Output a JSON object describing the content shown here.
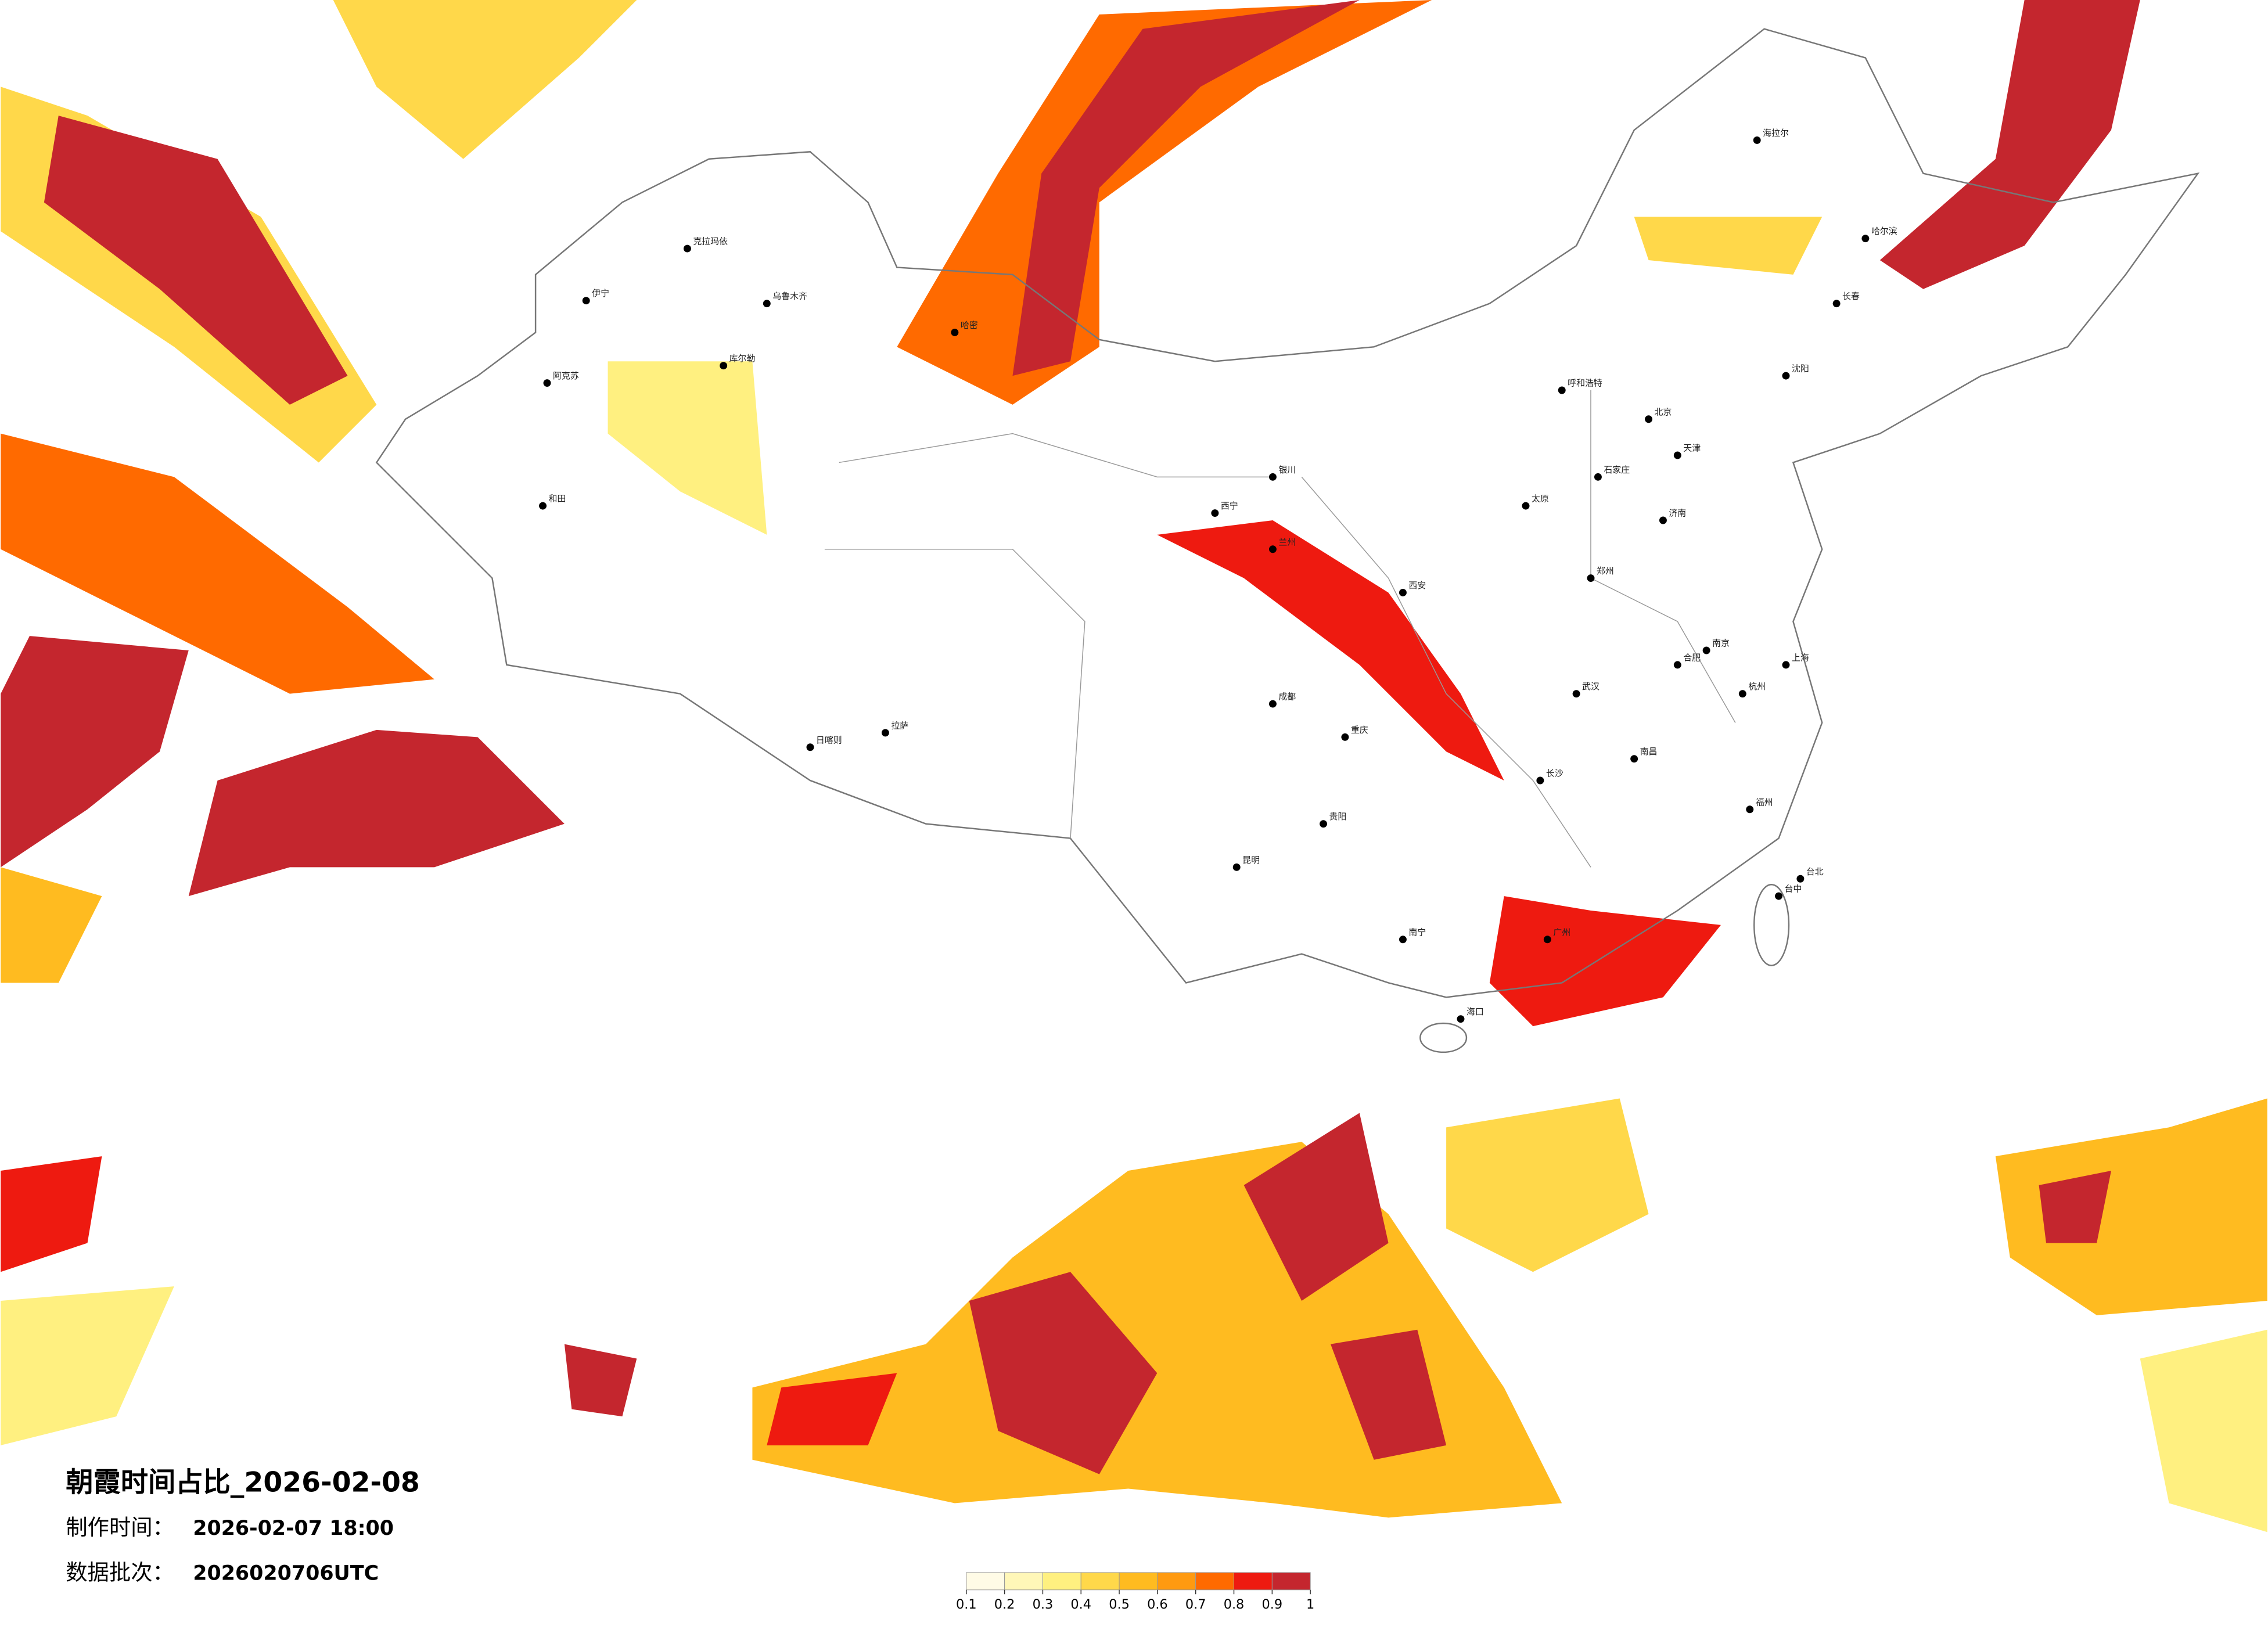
{
  "title": "朝霞时间占比_2026-02-08",
  "made_label": "制作时间：",
  "made_time": "2026-02-07 18:00",
  "batch_label": "数据批次：",
  "batch": "2026020706UTC",
  "legend": {
    "ticks": [
      0.1,
      0.2,
      0.3,
      0.4,
      0.5,
      0.6,
      0.7,
      0.8,
      0.9,
      1
    ],
    "colors": [
      "#fffbe6",
      "#fff7b8",
      "#fff080",
      "#ffd84a",
      "#ffbb20",
      "#ff9a10",
      "#ff6a00",
      "#ee1a10",
      "#c4262e"
    ]
  },
  "cities": [
    "乌鲁木齐",
    "克拉玛依",
    "伊宁",
    "阿克苏",
    "和田",
    "库尔勒",
    "哈密",
    "拉萨",
    "日喀则",
    "西宁",
    "兰州",
    "银川",
    "成都",
    "重庆",
    "昆明",
    "贵阳",
    "南宁",
    "广州",
    "海口",
    "长沙",
    "武汉",
    "郑州",
    "西安",
    "北京",
    "天津",
    "石家庄",
    "太原",
    "济南",
    "南京",
    "上海",
    "杭州",
    "福州",
    "南昌",
    "合肥",
    "沈阳",
    "长春",
    "哈尔滨",
    "呼和浩特",
    "海拉尔",
    "台北",
    "台中"
  ]
}
